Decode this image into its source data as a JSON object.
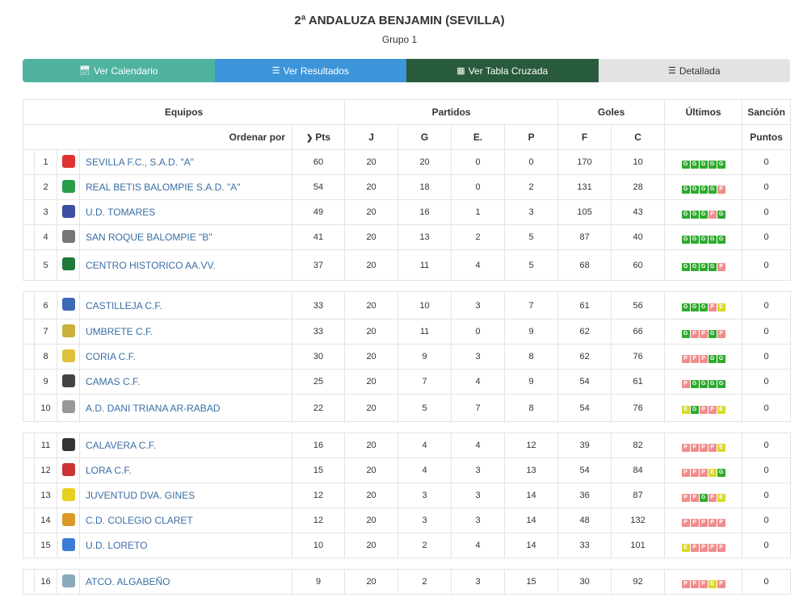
{
  "header": {
    "title": "2ª ANDALUZA BENJAMIN (SEVILLA)",
    "subtitle": "Grupo 1"
  },
  "buttons": [
    {
      "label": "Ver Calendario",
      "icon": "calendar-icon"
    },
    {
      "label": "Ver Resultados",
      "icon": "list-icon"
    },
    {
      "label": "Ver Tabla Cruzada",
      "icon": "table-icon"
    },
    {
      "label": "Detallada",
      "icon": "list-icon"
    }
  ],
  "table_head": {
    "equipos": "Equipos",
    "partidos": "Partidos",
    "goles": "Goles",
    "ultimos": "Últimos",
    "sancion": "Sanción",
    "ordenar": "Ordenar por",
    "pts": "Pts",
    "j": "J",
    "g": "G",
    "e": "E.",
    "p": "P",
    "f": "F",
    "c": "C",
    "puntos": "Puntos"
  },
  "colors": {
    "win": "#2eaa2e",
    "loss": "#f28b8b",
    "draw": "#d9d92a"
  },
  "rows": [
    {
      "pos": "1",
      "team": "SEVILLA F.C., S.A.D. \"A\"",
      "crest": "#d33",
      "pts": "60",
      "j": "20",
      "g": "20",
      "e": "0",
      "p": "0",
      "f": "170",
      "c": "10",
      "form": "GGGGG",
      "san": "0"
    },
    {
      "pos": "2",
      "team": "REAL BETIS BALOMPIE S.A.D. \"A\"",
      "crest": "#2a9d4a",
      "pts": "54",
      "j": "20",
      "g": "18",
      "e": "0",
      "p": "2",
      "f": "131",
      "c": "28",
      "form": "GGGGP",
      "san": "0"
    },
    {
      "pos": "3",
      "team": "U.D. TOMARES",
      "crest": "#3a4fa0",
      "pts": "49",
      "j": "20",
      "g": "16",
      "e": "1",
      "p": "3",
      "f": "105",
      "c": "43",
      "form": "GGGPG",
      "san": "0"
    },
    {
      "pos": "4",
      "team": "SAN ROQUE BALOMPIE \"B\"",
      "crest": "#777",
      "pts": "41",
      "j": "20",
      "g": "13",
      "e": "2",
      "p": "5",
      "f": "87",
      "c": "40",
      "form": "GGGGG",
      "san": "0"
    },
    {
      "pos": "5",
      "team": "CENTRO HISTORICO AA.VV.",
      "crest": "#1f7a3a",
      "pts": "37",
      "j": "20",
      "g": "11",
      "e": "4",
      "p": "5",
      "f": "68",
      "c": "60",
      "form": "GGGGP",
      "san": "0"
    },
    {
      "pos": "6",
      "team": "CASTILLEJA C.F.",
      "crest": "#3d6ab5",
      "pts": "33",
      "j": "20",
      "g": "10",
      "e": "3",
      "p": "7",
      "f": "61",
      "c": "56",
      "form": "GGGPE",
      "san": "0"
    },
    {
      "pos": "7",
      "team": "UMBRETE C.F.",
      "crest": "#c9b13a",
      "pts": "33",
      "j": "20",
      "g": "11",
      "e": "0",
      "p": "9",
      "f": "62",
      "c": "66",
      "form": "GPPGP",
      "san": "0"
    },
    {
      "pos": "8",
      "team": "CORIA C.F.",
      "crest": "#e0c23a",
      "pts": "30",
      "j": "20",
      "g": "9",
      "e": "3",
      "p": "8",
      "f": "62",
      "c": "76",
      "form": "PPPGG",
      "san": "0"
    },
    {
      "pos": "9",
      "team": "CAMAS C.F.",
      "crest": "#444",
      "pts": "25",
      "j": "20",
      "g": "7",
      "e": "4",
      "p": "9",
      "f": "54",
      "c": "61",
      "form": "PGGGG",
      "san": "0"
    },
    {
      "pos": "10",
      "team": "A.D. DANI TRIANA AR-RABAD",
      "crest": "#999",
      "pts": "22",
      "j": "20",
      "g": "5",
      "e": "7",
      "p": "8",
      "f": "54",
      "c": "76",
      "form": "EGPPE",
      "san": "0"
    },
    {
      "pos": "11",
      "team": "CALAVERA C.F.",
      "crest": "#333",
      "pts": "16",
      "j": "20",
      "g": "4",
      "e": "4",
      "p": "12",
      "f": "39",
      "c": "82",
      "form": "PPPPE",
      "san": "0"
    },
    {
      "pos": "12",
      "team": "LORA C.F.",
      "crest": "#c33",
      "pts": "15",
      "j": "20",
      "g": "4",
      "e": "3",
      "p": "13",
      "f": "54",
      "c": "84",
      "form": "PPPEG",
      "san": "0"
    },
    {
      "pos": "13",
      "team": "JUVENTUD DVA. GINES",
      "crest": "#e6d020",
      "pts": "12",
      "j": "20",
      "g": "3",
      "e": "3",
      "p": "14",
      "f": "36",
      "c": "87",
      "form": "PPGPE",
      "san": "0"
    },
    {
      "pos": "14",
      "team": "C.D. COLEGIO CLARET",
      "crest": "#d99a2a",
      "pts": "12",
      "j": "20",
      "g": "3",
      "e": "3",
      "p": "14",
      "f": "48",
      "c": "132",
      "form": "PPPPP",
      "san": "0"
    },
    {
      "pos": "15",
      "team": "U.D. LORETO",
      "crest": "#3a7bd5",
      "pts": "10",
      "j": "20",
      "g": "2",
      "e": "4",
      "p": "14",
      "f": "33",
      "c": "101",
      "form": "EPPPP",
      "san": "0"
    },
    {
      "pos": "16",
      "team": "ATCO. ALGABEÑO",
      "crest": "#8ab",
      "pts": "9",
      "j": "20",
      "g": "2",
      "e": "3",
      "p": "15",
      "f": "30",
      "c": "92",
      "form": "PPPEP",
      "san": "0"
    }
  ]
}
